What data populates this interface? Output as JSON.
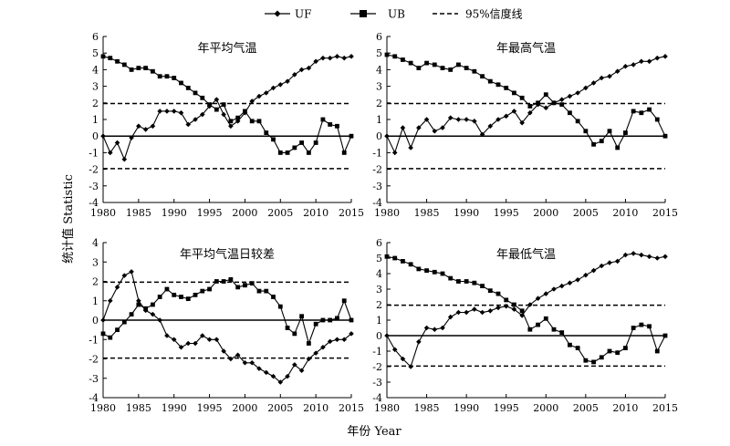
{
  "figure": {
    "ylabel": "统计值 Statistic",
    "xlabel": "年份 Year"
  },
  "legend": {
    "items": [
      {
        "key": "uf",
        "label": "UF",
        "style": "line-diamond"
      },
      {
        "key": "ub",
        "label": "UB",
        "style": "line-square"
      },
      {
        "key": "ci",
        "label": "95%信度线",
        "style": "dashed"
      }
    ]
  },
  "chart_data": [
    {
      "type": "line",
      "title": "年平均气温",
      "x": [
        1980,
        1981,
        1982,
        1983,
        1984,
        1985,
        1986,
        1987,
        1988,
        1989,
        1990,
        1991,
        1992,
        1993,
        1994,
        1995,
        1996,
        1997,
        1998,
        1999,
        2000,
        2001,
        2002,
        2003,
        2004,
        2005,
        2006,
        2007,
        2008,
        2009,
        2010,
        2011,
        2012,
        2013,
        2014,
        2015
      ],
      "series": [
        {
          "name": "UF",
          "values": [
            0,
            -1.0,
            -0.4,
            -1.4,
            -0.1,
            0.6,
            0.4,
            0.6,
            1.5,
            1.5,
            1.5,
            1.4,
            0.7,
            1.0,
            1.3,
            1.8,
            2.2,
            1.3,
            0.6,
            0.9,
            1.4,
            2.1,
            2.4,
            2.6,
            2.9,
            3.1,
            3.3,
            3.7,
            4.0,
            4.1,
            4.5,
            4.7,
            4.7,
            4.8,
            4.7,
            4.8
          ]
        },
        {
          "name": "UB",
          "values": [
            4.8,
            4.7,
            4.5,
            4.3,
            4.0,
            4.1,
            4.1,
            3.9,
            3.6,
            3.6,
            3.5,
            3.2,
            2.9,
            2.6,
            2.3,
            1.9,
            1.6,
            1.9,
            0.9,
            1.1,
            1.5,
            0.9,
            0.9,
            0.2,
            -0.2,
            -1.0,
            -1.0,
            -0.7,
            -0.4,
            -1.0,
            -0.4,
            1.0,
            0.7,
            0.6,
            -1.0,
            0
          ]
        }
      ],
      "threshold": 1.96,
      "xlim": [
        1980,
        2015
      ],
      "ylim": [
        -4,
        6
      ],
      "xticks": [
        1980,
        1985,
        1990,
        1995,
        2000,
        2005,
        2010,
        2015
      ],
      "yticks": [
        -4,
        -3,
        -2,
        -1,
        0,
        1,
        2,
        3,
        4,
        5,
        6
      ]
    },
    {
      "type": "line",
      "title": "年最高气温",
      "x": [
        1980,
        1981,
        1982,
        1983,
        1984,
        1985,
        1986,
        1987,
        1988,
        1989,
        1990,
        1991,
        1992,
        1993,
        1994,
        1995,
        1996,
        1997,
        1998,
        1999,
        2000,
        2001,
        2002,
        2003,
        2004,
        2005,
        2006,
        2007,
        2008,
        2009,
        2010,
        2011,
        2012,
        2013,
        2014,
        2015
      ],
      "series": [
        {
          "name": "UF",
          "values": [
            0,
            -1.0,
            0.5,
            -0.7,
            0.5,
            1.0,
            0.3,
            0.5,
            1.1,
            1.0,
            1.0,
            0.9,
            0.1,
            0.6,
            1.0,
            1.2,
            1.5,
            0.8,
            1.4,
            1.9,
            1.7,
            2.0,
            2.2,
            2.4,
            2.6,
            2.9,
            3.2,
            3.5,
            3.6,
            3.9,
            4.2,
            4.3,
            4.5,
            4.5,
            4.7,
            4.8
          ]
        },
        {
          "name": "UB",
          "values": [
            4.9,
            4.8,
            4.6,
            4.4,
            4.1,
            4.4,
            4.3,
            4.1,
            4.0,
            4.3,
            4.1,
            3.9,
            3.6,
            3.3,
            3.1,
            2.9,
            2.6,
            2.3,
            1.8,
            2.0,
            2.5,
            2.0,
            1.9,
            1.4,
            0.9,
            0.3,
            -0.5,
            -0.3,
            0.3,
            -0.7,
            0.2,
            1.5,
            1.4,
            1.6,
            1.0,
            0.0
          ]
        }
      ],
      "threshold": 1.96,
      "xlim": [
        1980,
        2015
      ],
      "ylim": [
        -4,
        6
      ],
      "xticks": [
        1980,
        1985,
        1990,
        1995,
        2000,
        2005,
        2010,
        2015
      ],
      "yticks": [
        -4,
        -3,
        -2,
        -1,
        0,
        1,
        2,
        3,
        4,
        5,
        6
      ]
    },
    {
      "type": "line",
      "title": "年平均气温日较差",
      "x": [
        1980,
        1981,
        1982,
        1983,
        1984,
        1985,
        1986,
        1987,
        1988,
        1989,
        1990,
        1991,
        1992,
        1993,
        1994,
        1995,
        1996,
        1997,
        1998,
        1999,
        2000,
        2001,
        2002,
        2003,
        2004,
        2005,
        2006,
        2007,
        2008,
        2009,
        2010,
        2011,
        2012,
        2013,
        2014,
        2015
      ],
      "series": [
        {
          "name": "UF",
          "values": [
            0,
            1.0,
            1.7,
            2.3,
            2.5,
            1.0,
            0.5,
            0.3,
            0.0,
            -0.8,
            -1.0,
            -1.4,
            -1.2,
            -1.2,
            -0.8,
            -1.0,
            -1.0,
            -1.6,
            -2.0,
            -1.8,
            -2.2,
            -2.2,
            -2.5,
            -2.7,
            -2.9,
            -3.2,
            -2.9,
            -2.3,
            -2.6,
            -2.0,
            -1.7,
            -1.4,
            -1.1,
            -1.0,
            -1.0,
            -0.7
          ]
        },
        {
          "name": "UB",
          "values": [
            -0.7,
            -0.9,
            -0.5,
            -0.1,
            0.3,
            0.8,
            0.6,
            0.8,
            1.2,
            1.6,
            1.3,
            1.2,
            1.1,
            1.3,
            1.5,
            1.6,
            2.0,
            2.0,
            2.1,
            1.7,
            1.8,
            1.9,
            1.5,
            1.5,
            1.2,
            0.7,
            -0.4,
            -0.7,
            0.2,
            -1.2,
            -0.2,
            0.0,
            0.0,
            0.1,
            1.0,
            0.0
          ]
        }
      ],
      "threshold": 1.96,
      "xlim": [
        1980,
        2015
      ],
      "ylim": [
        -4,
        4
      ],
      "xticks": [
        1980,
        1985,
        1990,
        1995,
        2000,
        2005,
        2010,
        2015
      ],
      "yticks": [
        -4,
        -3,
        -2,
        -1,
        0,
        1,
        2,
        3,
        4
      ]
    },
    {
      "type": "line",
      "title": "年最低气温",
      "x": [
        1980,
        1981,
        1982,
        1983,
        1984,
        1985,
        1986,
        1987,
        1988,
        1989,
        1990,
        1991,
        1992,
        1993,
        1994,
        1995,
        1996,
        1997,
        1998,
        1999,
        2000,
        2001,
        2002,
        2003,
        2004,
        2005,
        2006,
        2007,
        2008,
        2009,
        2010,
        2011,
        2012,
        2013,
        2014,
        2015
      ],
      "series": [
        {
          "name": "UF",
          "values": [
            0,
            -0.9,
            -1.5,
            -2.0,
            -0.4,
            0.5,
            0.4,
            0.5,
            1.2,
            1.5,
            1.5,
            1.7,
            1.5,
            1.6,
            1.8,
            1.9,
            1.7,
            1.3,
            2.0,
            2.4,
            2.7,
            3.0,
            3.2,
            3.4,
            3.6,
            3.9,
            4.2,
            4.5,
            4.7,
            4.8,
            5.2,
            5.3,
            5.2,
            5.1,
            5.0,
            5.1
          ]
        },
        {
          "name": "UB",
          "values": [
            5.1,
            5.0,
            4.8,
            4.6,
            4.3,
            4.2,
            4.1,
            4.0,
            3.7,
            3.5,
            3.5,
            3.4,
            3.2,
            2.9,
            2.7,
            2.3,
            2.0,
            1.6,
            0.4,
            0.7,
            1.1,
            0.4,
            0.2,
            -0.6,
            -0.8,
            -1.6,
            -1.7,
            -1.4,
            -1.0,
            -1.1,
            -0.8,
            0.5,
            0.7,
            0.6,
            -1.0,
            0.0
          ]
        }
      ],
      "threshold": 1.96,
      "xlim": [
        1980,
        2015
      ],
      "ylim": [
        -4,
        6
      ],
      "xticks": [
        1980,
        1985,
        1990,
        1995,
        2000,
        2005,
        2010,
        2015
      ],
      "yticks": [
        -4,
        -3,
        -2,
        -1,
        0,
        1,
        2,
        3,
        4,
        5,
        6
      ]
    }
  ]
}
